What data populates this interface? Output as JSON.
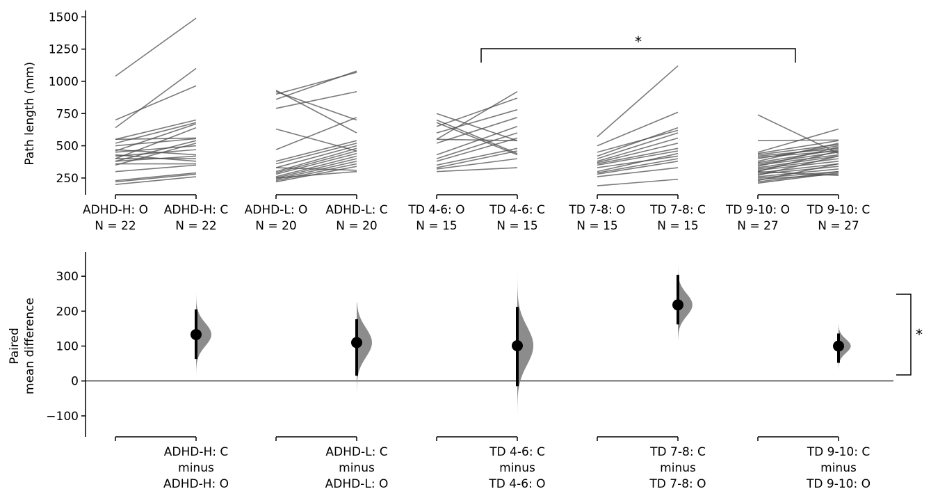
{
  "chart_data": [
    {
      "type": "line",
      "subtype": "paired-slopegraph",
      "ylabel": "Path length (mm)",
      "yticks": [
        250,
        500,
        750,
        1000,
        1250,
        1500
      ],
      "ylim": [
        120,
        1550
      ],
      "significance": {
        "from": "TD 4-6: O",
        "to": "TD 9-10: O",
        "label": "*"
      },
      "groups": [
        {
          "name": "ADHD-H",
          "left_label": "ADHD-H: O",
          "right_label": "ADHD-H: C",
          "left_n": "N = 22",
          "right_n": "N = 22",
          "pairs": [
            [
              1040,
              1490
            ],
            [
              640,
              1100
            ],
            [
              700,
              965
            ],
            [
              550,
              700
            ],
            [
              520,
              680
            ],
            [
              460,
              670
            ],
            [
              400,
              640
            ],
            [
              550,
              560
            ],
            [
              500,
              555
            ],
            [
              380,
              540
            ],
            [
              350,
              520
            ],
            [
              450,
              500
            ],
            [
              420,
              470
            ],
            [
              470,
              430
            ],
            [
              380,
              420
            ],
            [
              400,
              400
            ],
            [
              430,
              380
            ],
            [
              360,
              360
            ],
            [
              300,
              350
            ],
            [
              230,
              290
            ],
            [
              220,
              280
            ],
            [
              200,
              260
            ]
          ]
        },
        {
          "name": "ADHD-L",
          "left_label": "ADHD-L: O",
          "right_label": "ADHD-L: C",
          "left_n": "N = 20",
          "right_n": "N = 20",
          "pairs": [
            [
              930,
              600
            ],
            [
              900,
              1070
            ],
            [
              860,
              1080
            ],
            [
              920,
              700
            ],
            [
              790,
              920
            ],
            [
              630,
              460
            ],
            [
              470,
              720
            ],
            [
              380,
              540
            ],
            [
              360,
              520
            ],
            [
              330,
              500
            ],
            [
              300,
              480
            ],
            [
              290,
              460
            ],
            [
              280,
              440
            ],
            [
              260,
              420
            ],
            [
              250,
              400
            ],
            [
              240,
              380
            ],
            [
              230,
              360
            ],
            [
              220,
              340
            ],
            [
              250,
              300
            ],
            [
              330,
              310
            ]
          ]
        },
        {
          "name": "TD 4-6",
          "left_label": "TD 4-6: O",
          "right_label": "TD 4-6: C",
          "left_n": "N = 15",
          "right_n": "N = 15",
          "pairs": [
            [
              750,
              540
            ],
            [
              700,
              440
            ],
            [
              680,
              430
            ],
            [
              650,
              870
            ],
            [
              600,
              780
            ],
            [
              550,
              920
            ],
            [
              550,
              540
            ],
            [
              520,
              720
            ],
            [
              430,
              650
            ],
            [
              400,
              600
            ],
            [
              380,
              560
            ],
            [
              350,
              480
            ],
            [
              330,
              460
            ],
            [
              320,
              400
            ],
            [
              300,
              330
            ]
          ]
        },
        {
          "name": "TD 7-8",
          "left_label": "TD 7-8: O",
          "right_label": "TD 7-8: C",
          "left_n": "N = 15",
          "right_n": "N = 15",
          "pairs": [
            [
              570,
              1120
            ],
            [
              500,
              760
            ],
            [
              450,
              620
            ],
            [
              420,
              640
            ],
            [
              400,
              600
            ],
            [
              380,
              560
            ],
            [
              370,
              520
            ],
            [
              360,
              480
            ],
            [
              350,
              460
            ],
            [
              330,
              420
            ],
            [
              300,
              440
            ],
            [
              290,
              400
            ],
            [
              280,
              380
            ],
            [
              260,
              330
            ],
            [
              190,
              240
            ]
          ]
        },
        {
          "name": "TD 9-10",
          "left_label": "TD 9-10: O",
          "right_label": "TD 9-10: C",
          "left_n": "N = 27",
          "right_n": "N = 27",
          "pairs": [
            [
              740,
              440
            ],
            [
              540,
              545
            ],
            [
              450,
              630
            ],
            [
              440,
              540
            ],
            [
              430,
              510
            ],
            [
              420,
              480
            ],
            [
              410,
              460
            ],
            [
              400,
              500
            ],
            [
              380,
              520
            ],
            [
              370,
              470
            ],
            [
              360,
              450
            ],
            [
              350,
              430
            ],
            [
              340,
              490
            ],
            [
              330,
              420
            ],
            [
              320,
              400
            ],
            [
              310,
              380
            ],
            [
              300,
              460
            ],
            [
              290,
              360
            ],
            [
              280,
              340
            ],
            [
              270,
              420
            ],
            [
              260,
              320
            ],
            [
              250,
              300
            ],
            [
              240,
              280
            ],
            [
              230,
              360
            ],
            [
              220,
              300
            ],
            [
              210,
              290
            ],
            [
              300,
              270
            ]
          ]
        }
      ]
    },
    {
      "type": "scatter",
      "subtype": "estimation-plot",
      "ylabel": "Paired mean difference",
      "ylabel_lines": [
        "Paired",
        "mean difference"
      ],
      "yticks": [
        -100,
        0,
        100,
        200,
        300
      ],
      "ytick_labels": [
        "−100",
        "0",
        "100",
        "200",
        "300"
      ],
      "ylim": [
        -160,
        370
      ],
      "zero_line": true,
      "significance": {
        "from": "ADHD-H: C minus ADHD-H: O",
        "to": "TD 9-10: C minus TD 9-10: O",
        "label": "*"
      },
      "comparisons": [
        {
          "label_lines": [
            "ADHD-H: C",
            "minus",
            "ADHD-H: O"
          ],
          "mean": 133,
          "ci": [
            63,
            205
          ],
          "dist_min": 0,
          "dist_max": 255,
          "dist_sd": 33,
          "peak_width": 1.0
        },
        {
          "label_lines": [
            "ADHD-L: C",
            "minus",
            "ADHD-L: O"
          ],
          "mean": 110,
          "ci": [
            15,
            177
          ],
          "dist_min": -45,
          "dist_max": 225,
          "dist_sd": 42,
          "peak_width": 1.0
        },
        {
          "label_lines": [
            "TD 4-6: C",
            "minus",
            "TD 4-6: O"
          ],
          "mean": 101,
          "ci": [
            -15,
            212
          ],
          "dist_min": -105,
          "dist_max": 320,
          "dist_sd": 55,
          "peak_width": 1.05
        },
        {
          "label_lines": [
            "TD 7-8: C",
            "minus",
            "TD 7-8: O"
          ],
          "mean": 218,
          "ci": [
            162,
            304
          ],
          "dist_min": 118,
          "dist_max": 355,
          "dist_sd": 32,
          "peak_width": 0.95
        },
        {
          "label_lines": [
            "TD 9-10: C",
            "minus",
            "TD 9-10: O"
          ],
          "mean": 100,
          "ci": [
            52,
            136
          ],
          "dist_min": 30,
          "dist_max": 165,
          "dist_sd": 20,
          "peak_width": 0.8
        }
      ]
    }
  ],
  "colors": {
    "pair_line": "#4d4d4d",
    "distribution": "#8c8c8c",
    "marker": "#000000",
    "axis": "#000000"
  }
}
